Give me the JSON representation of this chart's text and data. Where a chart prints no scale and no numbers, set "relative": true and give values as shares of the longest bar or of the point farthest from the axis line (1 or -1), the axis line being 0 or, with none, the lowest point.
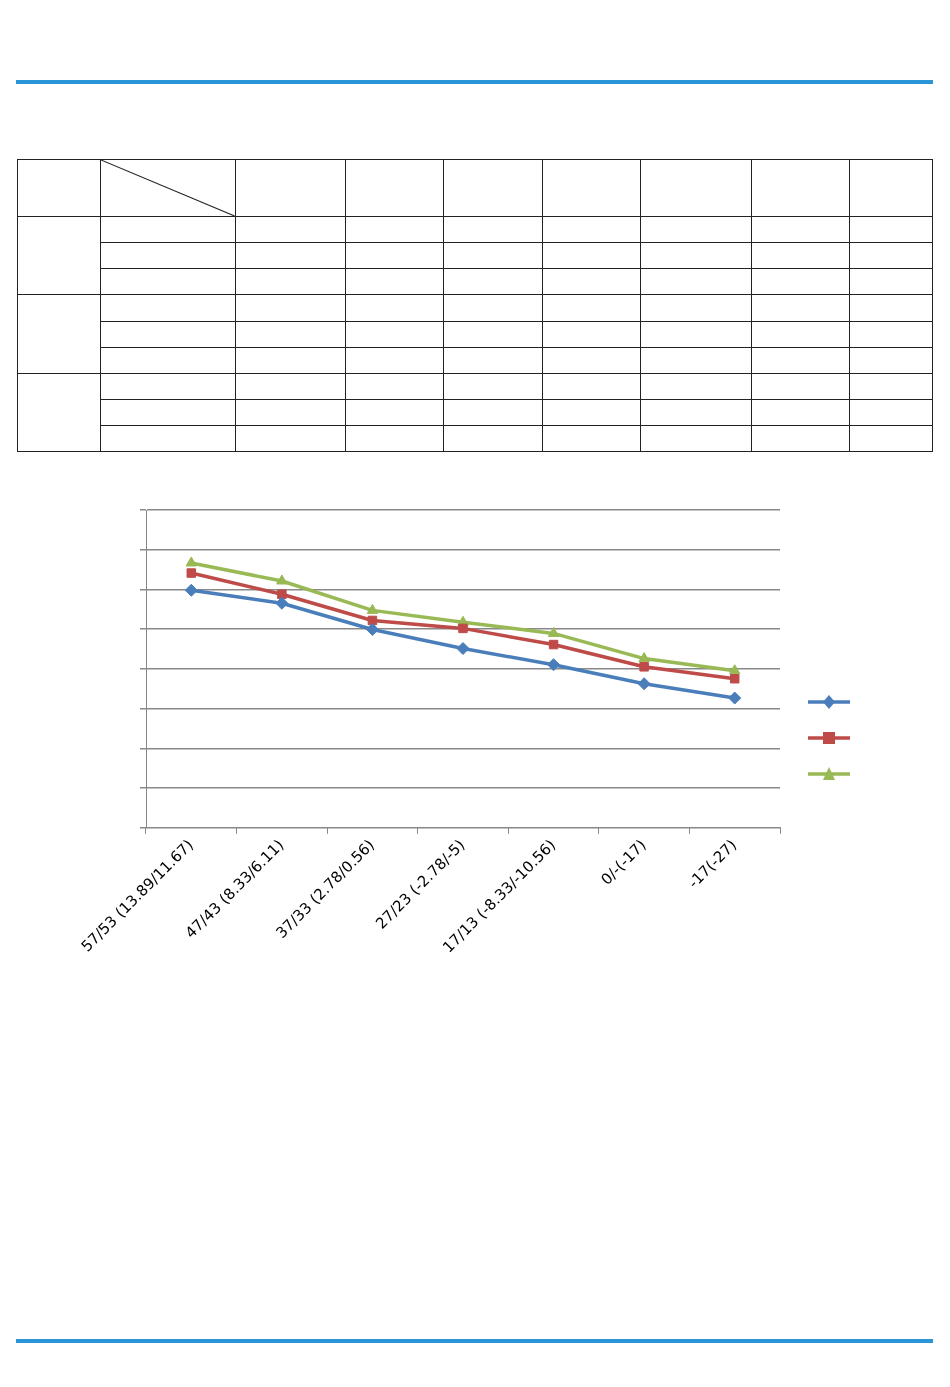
{
  "chart_data": {
    "type": "line",
    "relative": true,
    "grid": "y",
    "line_style": "solid",
    "categories": [
      "57/53 (13.89/11.67)",
      "47/43 (8.33/6.11)",
      "37/33 (2.78/0.56)",
      "27/23 (-2.78/-5)",
      "17/13 (-8.33/-10.56)",
      "0/-(-17)",
      "-17(-27)"
    ],
    "series": [
      {
        "color": "#4a7ebb",
        "marker": "diamond",
        "values": [
          0.897,
          0.848,
          0.749,
          0.677,
          0.616,
          0.544,
          0.49
        ]
      },
      {
        "color": "#be4b48",
        "marker": "square",
        "values": [
          0.962,
          0.882,
          0.783,
          0.753,
          0.692,
          0.608,
          0.563
        ]
      },
      {
        "color": "#98b954",
        "marker": "triangle",
        "values": [
          1,
          0.932,
          0.821,
          0.776,
          0.734,
          0.639,
          0.593
        ]
      }
    ]
  }
}
